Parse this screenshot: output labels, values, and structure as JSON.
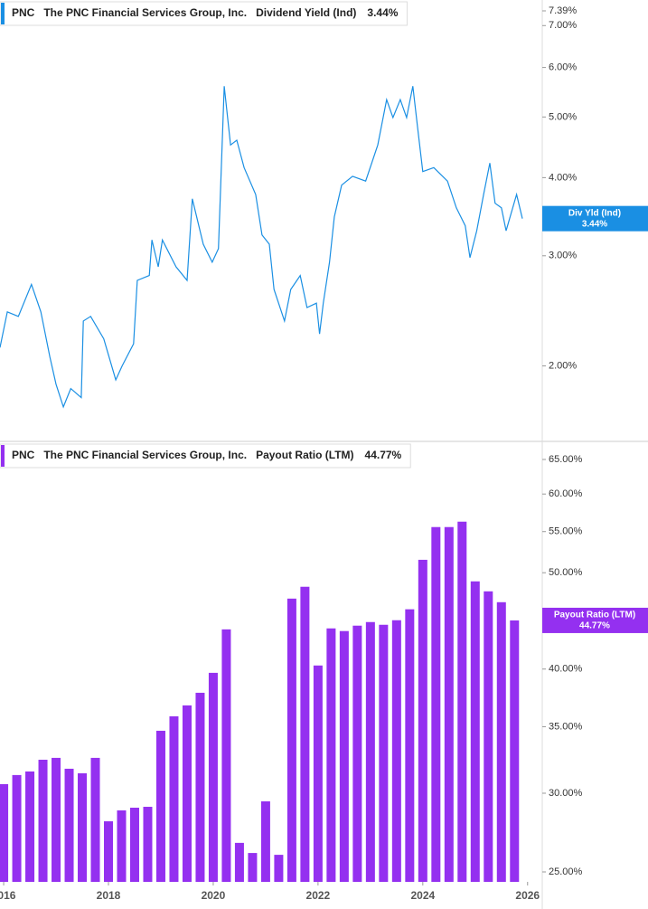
{
  "chart_data": [
    {
      "type": "line",
      "ticker": "PNC",
      "company": "The PNC Financial Services Group, Inc.",
      "badge_label": "Div Yld (Ind)",
      "last_label": "3.44%",
      "log_scale": true,
      "xlim": [
        2015.93,
        2026.28
      ],
      "ylim": [
        1.52,
        7.39
      ],
      "yticks": [
        {
          "value": 7.39,
          "label": "7.39%"
        },
        {
          "value": 7,
          "label": "7.00%"
        },
        {
          "value": 6,
          "label": "6.00%"
        },
        {
          "value": 5,
          "label": "5.00%"
        },
        {
          "value": 4,
          "label": "4.00%"
        },
        {
          "value": 3,
          "label": "3.00%"
        },
        {
          "value": 2,
          "label": "2.00%"
        }
      ],
      "x": [
        2015.93,
        2016.07,
        2016.28,
        2016.53,
        2016.71,
        2016.88,
        2017.0,
        2017.14,
        2017.28,
        2017.48,
        2017.52,
        2017.66,
        2017.91,
        2018.14,
        2018.26,
        2018.48,
        2018.55,
        2018.78,
        2018.83,
        2018.95,
        2019.03,
        2019.29,
        2019.5,
        2019.6,
        2019.81,
        2019.98,
        2020.1,
        2020.21,
        2020.33,
        2020.45,
        2020.59,
        2020.81,
        2020.93,
        2021.07,
        2021.16,
        2021.36,
        2021.48,
        2021.66,
        2021.79,
        2021.97,
        2022.03,
        2022.1,
        2022.22,
        2022.31,
        2022.45,
        2022.66,
        2022.91,
        2023.14,
        2023.31,
        2023.43,
        2023.57,
        2023.69,
        2023.81,
        2023.9,
        2024.0,
        2024.21,
        2024.47,
        2024.64,
        2024.81,
        2024.9,
        2025.03,
        2025.16,
        2025.28,
        2025.38,
        2025.5,
        2025.59,
        2025.79,
        2025.9
      ],
      "series": [
        {
          "name": "Dividend Yield (Ind)",
          "color": "#1a8fe3",
          "values": [
            2.14,
            2.44,
            2.4,
            2.7,
            2.44,
            2.07,
            1.87,
            1.72,
            1.84,
            1.78,
            2.36,
            2.4,
            2.21,
            1.9,
            2.0,
            2.17,
            2.74,
            2.79,
            3.18,
            2.88,
            3.18,
            2.88,
            2.74,
            3.7,
            3.13,
            2.93,
            3.08,
            5.6,
            4.51,
            4.59,
            4.15,
            3.76,
            3.24,
            3.13,
            2.65,
            2.36,
            2.65,
            2.79,
            2.48,
            2.52,
            2.25,
            2.52,
            2.93,
            3.46,
            3.89,
            4.02,
            3.95,
            4.51,
            5.33,
            4.99,
            5.33,
            4.99,
            5.6,
            4.82,
            4.09,
            4.15,
            3.95,
            3.58,
            3.35,
            2.98,
            3.29,
            3.76,
            4.22,
            3.64,
            3.58,
            3.29,
            3.76,
            3.44
          ]
        }
      ]
    },
    {
      "type": "bar",
      "ticker": "PNC",
      "company": "The PNC Financial Services Group, Inc.",
      "last_label": "44.77%",
      "log_scale": true,
      "xlim": [
        2015.93,
        2026.28
      ],
      "ylim": [
        24.43,
        67.5
      ],
      "xticks": [
        2016,
        2018,
        2020,
        2022,
        2024,
        2026
      ],
      "yticks": [
        {
          "value": 65,
          "label": "65.00%"
        },
        {
          "value": 60,
          "label": "60.00%"
        },
        {
          "value": 55,
          "label": "55.00%"
        },
        {
          "value": 50,
          "label": "50.00%"
        },
        {
          "value": 40,
          "label": "40.00%"
        },
        {
          "value": 35,
          "label": "35.00%"
        },
        {
          "value": 30,
          "label": "30.00%"
        },
        {
          "value": 25,
          "label": "25.00%"
        }
      ],
      "x": [
        2016.0,
        2016.25,
        2016.5,
        2016.75,
        2017.0,
        2017.25,
        2017.5,
        2017.75,
        2018.0,
        2018.25,
        2018.5,
        2018.75,
        2019.0,
        2019.25,
        2019.5,
        2019.75,
        2020.0,
        2020.25,
        2020.5,
        2020.75,
        2021.0,
        2021.25,
        2021.5,
        2021.75,
        2022.0,
        2022.25,
        2022.5,
        2022.75,
        2023.0,
        2023.25,
        2023.5,
        2023.75,
        2024.0,
        2024.25,
        2024.5,
        2024.75,
        2025.0,
        2025.25,
        2025.5,
        2025.75
      ],
      "series": [
        {
          "name": "Payout Ratio (LTM)",
          "color": "#9430f0",
          "values": [
            30.64,
            31.29,
            31.55,
            32.42,
            32.56,
            31.75,
            31.42,
            32.56,
            28.11,
            28.83,
            29.01,
            29.07,
            34.67,
            35.85,
            36.77,
            37.86,
            39.65,
            43.85,
            26.74,
            26.12,
            29.44,
            26.01,
            47.09,
            48.4,
            40.33,
            43.95,
            43.68,
            44.23,
            44.6,
            44.32,
            44.79,
            45.94,
            51.52,
            55.58,
            55.58,
            56.28,
            49.01,
            47.89,
            46.7,
            44.77
          ]
        }
      ]
    }
  ]
}
